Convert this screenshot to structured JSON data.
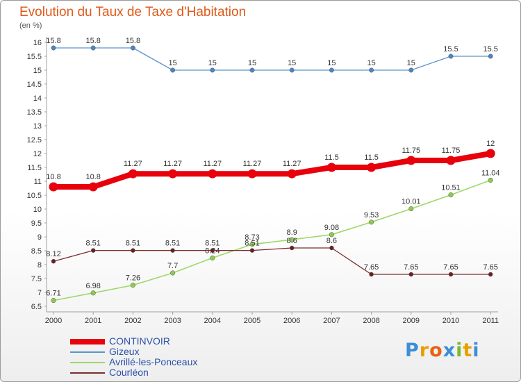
{
  "header": {
    "title": "Evolution du Taux de Taxe d'Habitation",
    "subtitle": "(en %)"
  },
  "legend": [
    {
      "label": "CONTINVOIR",
      "color": "#e8000b",
      "thickness": 8
    },
    {
      "label": "Gizeux",
      "color": "#5b95cc",
      "thickness": 2
    },
    {
      "label": "Avrillé-les-Ponceaux",
      "color": "#9ed86a",
      "thickness": 2
    },
    {
      "label": "Courléon",
      "color": "#7a2e2e",
      "thickness": 2
    }
  ],
  "logo": {
    "text": "Proxiti",
    "colors": [
      "#3a8fd6",
      "#e8a000",
      "#e86010",
      "#3a8fd6",
      "#7ab830",
      "#e8a000",
      "#3a8fd6"
    ]
  },
  "chart_data": {
    "type": "line",
    "title": "Evolution du Taux de Taxe d'Habitation",
    "ylabel": "(en %)",
    "xlabel": "",
    "x": [
      "2000",
      "2001",
      "2002",
      "2003",
      "2004",
      "2005",
      "2006",
      "2007",
      "2008",
      "2009",
      "2010",
      "2011"
    ],
    "ylim": [
      6.5,
      16
    ],
    "yticks": [
      "6.5",
      "7",
      "7.5",
      "8",
      "8.5",
      "9",
      "9.5",
      "10",
      "10.5",
      "11",
      "11.5",
      "12",
      "12.5",
      "13",
      "13.5",
      "14",
      "14.5",
      "15",
      "15.5",
      "16"
    ],
    "grid": false,
    "legend_position": "bottom-left",
    "series": [
      {
        "name": "Gizeux",
        "color": "#5b95cc",
        "point_color": "#4a86c8",
        "line_width": 1.3,
        "marker_radius": 3.2,
        "values": [
          15.8,
          15.8,
          15.8,
          15,
          15,
          15,
          15,
          15,
          15,
          15,
          15.5,
          15.5
        ],
        "labels": [
          "15.8",
          "15.8",
          "15.8",
          "15",
          "15",
          "15",
          "15",
          "15",
          "15",
          "15",
          "15.5",
          "15.5"
        ]
      },
      {
        "name": "Avrillé-les-Ponceaux",
        "color": "#9ed86a",
        "point_color": "#8ccc4a",
        "line_width": 1.6,
        "marker_radius": 3.3,
        "values": [
          6.71,
          6.98,
          7.26,
          7.7,
          8.24,
          8.73,
          8.9,
          9.08,
          9.53,
          10.01,
          10.51,
          11.04
        ],
        "labels": [
          "6.71",
          "6.98",
          "7.26",
          "7.7",
          "8.24",
          "8.73",
          "8.9",
          "9.08",
          "9.53",
          "10.01",
          "10.51",
          "11.04"
        ]
      },
      {
        "name": "Courléon",
        "color": "#7a2e2e",
        "point_color": "#6a2020",
        "line_width": 1.3,
        "marker_radius": 3.0,
        "values": [
          8.12,
          8.51,
          8.51,
          8.51,
          8.51,
          8.51,
          8.6,
          8.6,
          7.65,
          7.65,
          7.65,
          7.65
        ],
        "labels": [
          "8.12",
          "8.51",
          "8.51",
          "8.51",
          "8.51",
          "8.51",
          "8.6",
          "8.6",
          "7.65",
          "7.65",
          "7.65",
          "7.65"
        ]
      },
      {
        "name": "CONTINVOIR",
        "color": "#e8000b",
        "point_color": "#e8000b",
        "line_width": 8,
        "marker_radius": 6.5,
        "values": [
          10.8,
          10.8,
          11.27,
          11.27,
          11.27,
          11.27,
          11.27,
          11.5,
          11.5,
          11.75,
          11.75,
          12
        ],
        "labels": [
          "10.8",
          "10.8",
          "11.27",
          "11.27",
          "11.27",
          "11.27",
          "11.27",
          "11.5",
          "11.5",
          "11.75",
          "11.75",
          "12"
        ]
      }
    ]
  }
}
